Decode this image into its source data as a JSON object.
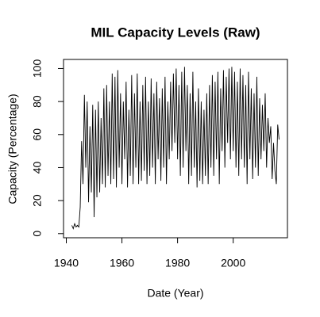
{
  "chart_data": {
    "type": "line",
    "title": "MIL Capacity Levels (Raw)",
    "xlabel": "Date (Year)",
    "ylabel": "Capacity (Percentage)",
    "x": [
      1942,
      1942.5,
      1943,
      1943.5,
      1944,
      1944.5,
      1945,
      1945.5,
      1946,
      1946.5,
      1947,
      1947.5,
      1948,
      1948.5,
      1949,
      1949.5,
      1950,
      1950.5,
      1951,
      1951.5,
      1952,
      1952.5,
      1953,
      1953.5,
      1954,
      1954.5,
      1955,
      1955.5,
      1956,
      1956.5,
      1957,
      1957.5,
      1958,
      1958.5,
      1959,
      1959.5,
      1960,
      1960.5,
      1961,
      1961.5,
      1962,
      1962.5,
      1963,
      1963.5,
      1964,
      1964.5,
      1965,
      1965.5,
      1966,
      1966.5,
      1967,
      1967.5,
      1968,
      1968.5,
      1969,
      1969.5,
      1970,
      1970.5,
      1971,
      1971.5,
      1972,
      1972.5,
      1973,
      1973.5,
      1974,
      1974.5,
      1975,
      1975.5,
      1976,
      1976.5,
      1977,
      1977.5,
      1978,
      1978.5,
      1979,
      1979.5,
      1980,
      1980.5,
      1981,
      1981.5,
      1982,
      1982.5,
      1983,
      1983.5,
      1984,
      1984.5,
      1985,
      1985.5,
      1986,
      1986.5,
      1987,
      1987.5,
      1988,
      1988.5,
      1989,
      1989.5,
      1990,
      1990.5,
      1991,
      1991.5,
      1992,
      1992.5,
      1993,
      1993.5,
      1994,
      1994.5,
      1995,
      1995.5,
      1996,
      1996.5,
      1997,
      1997.5,
      1998,
      1998.5,
      1999,
      1999.5,
      2000,
      2000.5,
      2001,
      2001.5,
      2002,
      2002.5,
      2003,
      2003.5,
      2004,
      2004.5,
      2005,
      2005.5,
      2006,
      2006.5,
      2007,
      2007.5,
      2008,
      2008.5,
      2009,
      2009.5,
      2010,
      2010.5,
      2011,
      2011.5,
      2012,
      2012.5,
      2013,
      2013.5,
      2014,
      2014.5,
      2015,
      2015.5,
      2016,
      2016.5
    ],
    "series": [
      {
        "name": "Capacity",
        "color": "#000000",
        "values": [
          5,
          3,
          6,
          4,
          5,
          4,
          16,
          56,
          30,
          84,
          40,
          80,
          19,
          65,
          25,
          78,
          10,
          75,
          22,
          80,
          25,
          70,
          30,
          88,
          28,
          90,
          35,
          80,
          30,
          97,
          33,
          95,
          28,
          99,
          40,
          85,
          30,
          80,
          45,
          92,
          28,
          75,
          35,
          96,
          30,
          85,
          40,
          97,
          30,
          80,
          32,
          90,
          38,
          95,
          30,
          80,
          35,
          94,
          40,
          85,
          30,
          92,
          45,
          82,
          32,
          88,
          40,
          95,
          30,
          80,
          45,
          92,
          50,
          97,
          55,
          100,
          45,
          90,
          35,
          98,
          40,
          101,
          50,
          90,
          30,
          85,
          35,
          98,
          40,
          80,
          28,
          88,
          32,
          80,
          30,
          75,
          35,
          85,
          30,
          90,
          40,
          96,
          35,
          92,
          45,
          98,
          30,
          88,
          50,
          99,
          40,
          95,
          55,
          100,
          45,
          101,
          50,
          98,
          40,
          92,
          35,
          100,
          45,
          96,
          40,
          90,
          30,
          98,
          45,
          88,
          33,
          85,
          40,
          95,
          35,
          82,
          45,
          78,
          50,
          85,
          40,
          70,
          55,
          65,
          33,
          55,
          38,
          30,
          66,
          57
        ]
      }
    ],
    "xlim": [
      1939,
      2019.5
    ],
    "ylim": [
      -2.5,
      105.5
    ],
    "xticks": [
      1940,
      1960,
      1980,
      2000
    ],
    "yticks": [
      0,
      20,
      40,
      60,
      80,
      100
    ]
  }
}
